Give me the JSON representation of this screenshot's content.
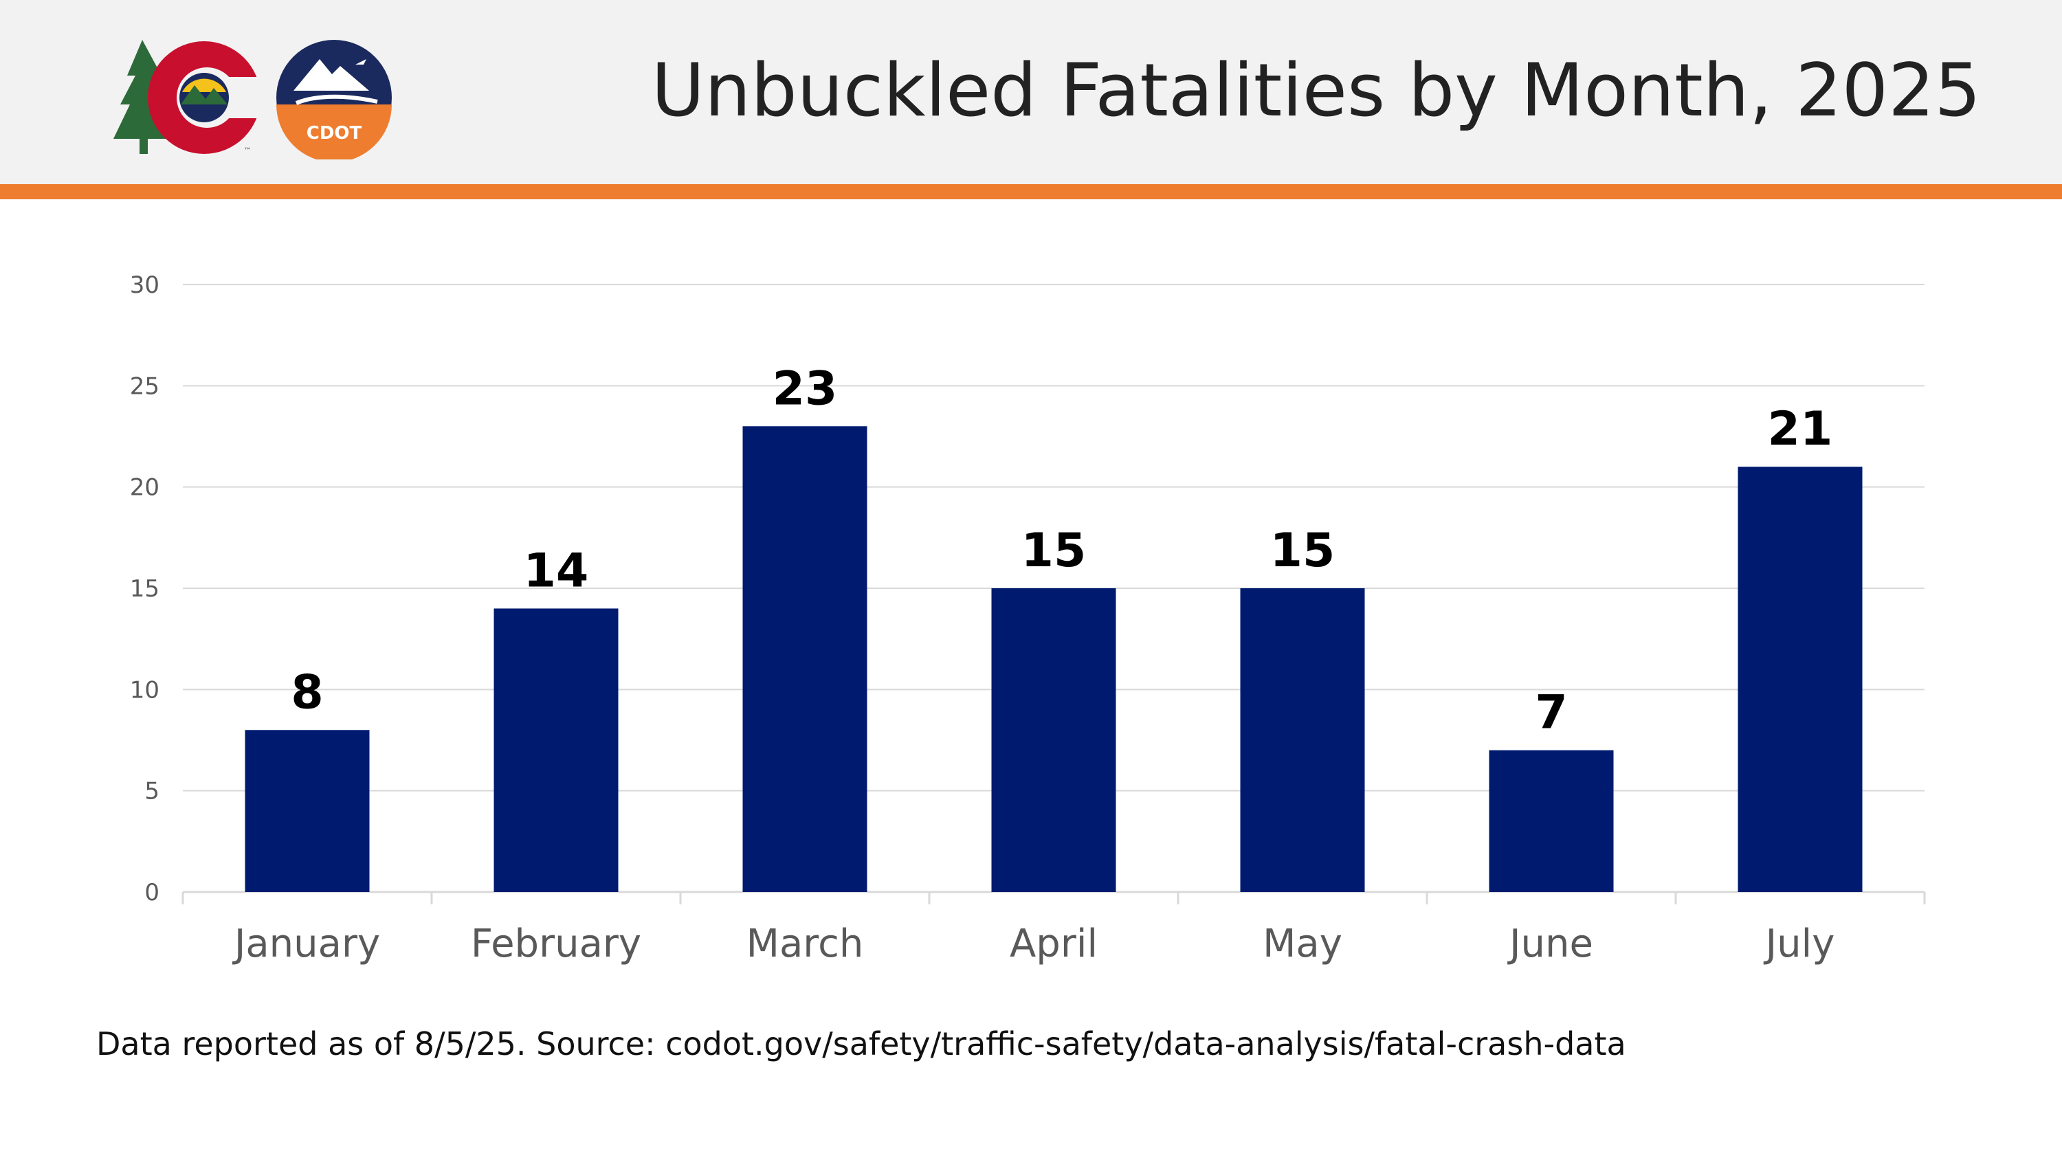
{
  "header": {
    "title": "Unbuckled Fatalities by Month, 2025",
    "tm_mark": "™",
    "cdot_label": "CDOT"
  },
  "footnote": "Data reported as of 8/5/25. Source: codot.gov/safety/traffic-safety/data-analysis/fatal-crash-data",
  "colors": {
    "bar": "#001a70",
    "header_bg": "#f2f2f2",
    "accent_orange": "#ee7d2f",
    "grid": "#d9d9d9",
    "logo_red": "#c8102e",
    "logo_navy": "#1b2a5e",
    "logo_gold": "#f4c21a",
    "logo_green": "#2d6a3a"
  },
  "chart_data": {
    "type": "bar",
    "categories": [
      "January",
      "February",
      "March",
      "April",
      "May",
      "June",
      "July"
    ],
    "values": [
      8,
      14,
      23,
      15,
      15,
      7,
      21
    ],
    "ylim": [
      0,
      30
    ],
    "yticks": [
      0,
      5,
      10,
      15,
      20,
      25,
      30
    ],
    "data_labels": true,
    "grid": true,
    "legend": "none"
  }
}
